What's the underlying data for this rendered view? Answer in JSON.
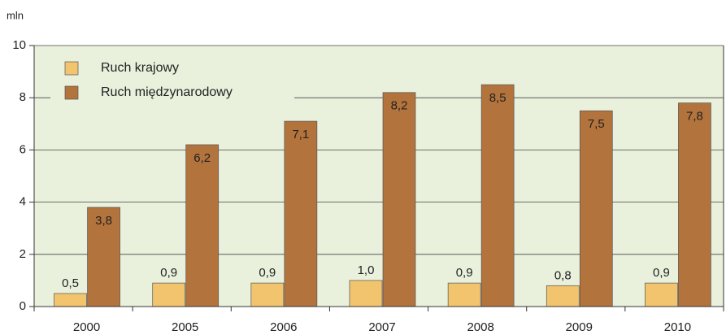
{
  "chart_data": {
    "type": "bar",
    "y_unit": "mln",
    "categories": [
      "2000",
      "2005",
      "2006",
      "2007",
      "2008",
      "2009",
      "2010"
    ],
    "series": [
      {
        "name": "Ruch krajowy",
        "color": "#f2c46e",
        "values": [
          0.5,
          0.9,
          0.9,
          1.0,
          0.9,
          0.8,
          0.9
        ],
        "value_labels": [
          "0,5",
          "0,9",
          "0,9",
          "1,0",
          "0,9",
          "0,8",
          "0,9"
        ]
      },
      {
        "name": "Ruch międzynarodowy",
        "color": "#b3733c",
        "values": [
          3.8,
          6.2,
          7.1,
          8.2,
          8.5,
          7.5,
          7.8
        ],
        "value_labels": [
          "3,8",
          "6,2",
          "7,1",
          "8,2",
          "8,5",
          "7,5",
          "7,8"
        ]
      }
    ],
    "ylim": [
      0,
      10
    ],
    "yticks": [
      0,
      2,
      4,
      6,
      8,
      10
    ],
    "grid": true,
    "legend": "upper left",
    "background": "#e9f1dd"
  }
}
